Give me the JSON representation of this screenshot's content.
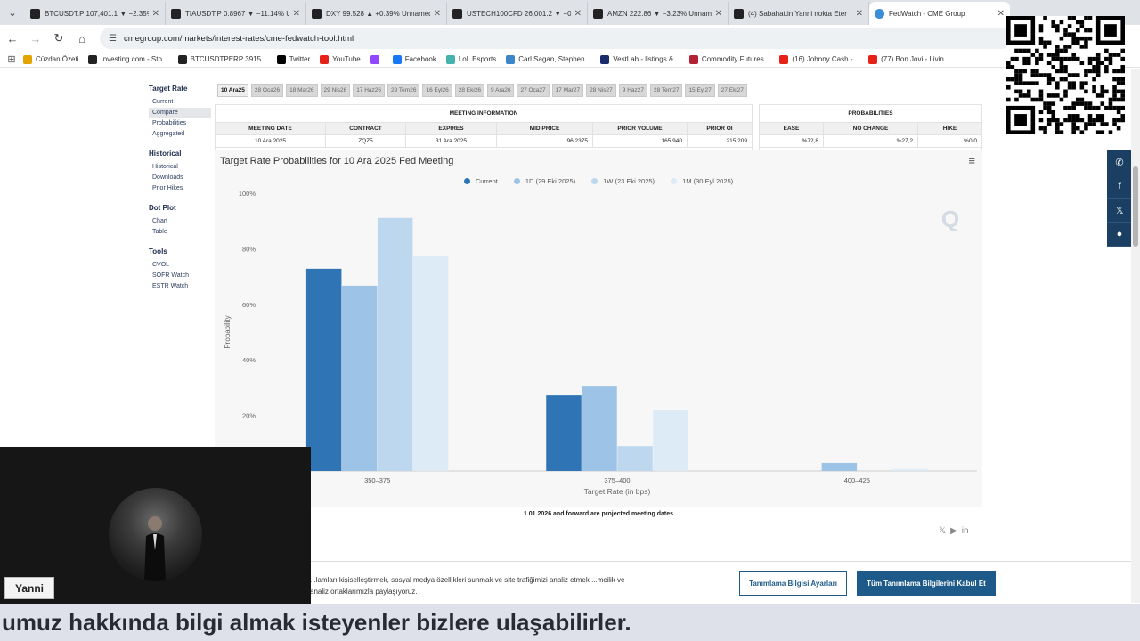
{
  "browser": {
    "tabs": [
      {
        "title": "BTCUSDT.P 107,401.1 ▼ −2.35%",
        "icon": "tradingview-icon"
      },
      {
        "title": "TIAUSDT.P 0.8967 ▼ −11.14% U",
        "icon": "tradingview-icon"
      },
      {
        "title": "DXY 99.528 ▲ +0.39% Unnamed",
        "icon": "tradingview-icon"
      },
      {
        "title": "USTECH100CFD 26,001.2 ▼ −0",
        "icon": "tradingview-icon"
      },
      {
        "title": "AMZN 222.86 ▼ −3.23% Unnam",
        "icon": "tradingview-icon"
      },
      {
        "title": "(4) Sabahattin Yanni nokta Eter",
        "icon": "x-icon"
      },
      {
        "title": "FedWatch - CME Group",
        "icon": "globe-icon"
      }
    ],
    "url": "cmegroup.com/markets/interest-rates/cme-fedwatch-tool.html",
    "bookmarks": [
      {
        "label": "Cüzdan Özeti",
        "color": "#e2a400"
      },
      {
        "label": "Investing.com - Sto...",
        "color": "#222222"
      },
      {
        "label": "BTCUSDTPERP 3915...",
        "color": "#222222"
      },
      {
        "label": "Twitter",
        "color": "#000000"
      },
      {
        "label": "YouTube",
        "color": "#e62117"
      },
      {
        "label": "",
        "color": "#9146ff"
      },
      {
        "label": "Facebook",
        "color": "#1877f2"
      },
      {
        "label": "LoL Esports",
        "color": "#46b3b0"
      },
      {
        "label": "Carl Sagan, Stephen...",
        "color": "#3a86c8"
      },
      {
        "label": "VestLab - listings &...",
        "color": "#1a2b6b"
      },
      {
        "label": "Commodity Futures...",
        "color": "#b22234"
      },
      {
        "label": "(16) Johnny Cash -...",
        "color": "#e62117"
      },
      {
        "label": "(77) Bon Jovi - Livin...",
        "color": "#e62117"
      }
    ]
  },
  "nav": {
    "sections": [
      {
        "title": "Target Rate",
        "items": [
          {
            "label": "Current",
            "selected": false
          },
          {
            "label": "Compare",
            "selected": true
          },
          {
            "label": "Probabilities",
            "selected": false
          },
          {
            "label": "Aggregated",
            "selected": false
          }
        ]
      },
      {
        "title": "Historical",
        "items": [
          {
            "label": "Historical",
            "selected": false
          },
          {
            "label": "Downloads",
            "selected": false
          },
          {
            "label": "Prior Hikes",
            "selected": false
          }
        ]
      },
      {
        "title": "Dot Plot",
        "items": [
          {
            "label": "Chart",
            "selected": false
          },
          {
            "label": "Table",
            "selected": false
          }
        ]
      },
      {
        "title": "Tools",
        "items": [
          {
            "label": "CVOL",
            "selected": false
          },
          {
            "label": "SOFR Watch",
            "selected": false
          },
          {
            "label": "ESTR Watch",
            "selected": false
          }
        ]
      }
    ]
  },
  "meeting_dates": [
    "10 Ara25",
    "28 Oca26",
    "18 Mar26",
    "29 Nis26",
    "17 Haz26",
    "29 Tem26",
    "16 Eyl26",
    "28 Eki26",
    "9 Ara26",
    "27 Oca27",
    "17 Mar27",
    "28 Nis27",
    "9 Haz27",
    "28 Tem27",
    "15 Eyl27",
    "27 Eki27"
  ],
  "meeting_info": {
    "title": "MEETING INFORMATION",
    "headers": [
      "MEETING DATE",
      "CONTRACT",
      "EXPIRES",
      "MID PRICE",
      "PRIOR VOLUME",
      "PRIOR OI"
    ],
    "values": [
      "10 Ara 2025",
      "ZQZ5",
      "31 Ara 2025",
      "96.2375",
      "165.940",
      "215.209"
    ]
  },
  "probabilities": {
    "title": "PROBABILITIES",
    "headers": [
      "EASE",
      "NO CHANGE",
      "HIKE"
    ],
    "values": [
      "%72,8",
      "%27,2",
      "%0.0"
    ]
  },
  "chart_data": {
    "type": "bar",
    "title": "Target Rate Probabilities for 10 Ara 2025 Fed Meeting",
    "xlabel": "Target Rate (in bps)",
    "ylabel": "Probability",
    "categories": [
      "350-375",
      "375-400",
      "400-425"
    ],
    "series": [
      {
        "name": "Current",
        "color": "#2f74b5",
        "values": [
          72.8,
          27.2,
          0.0
        ]
      },
      {
        "name": "1D (29 Eki 2025)",
        "color": "#9dc3e6",
        "values": [
          66.7,
          30.4,
          2.9
        ]
      },
      {
        "name": "1W (23 Eki 2025)",
        "color": "#bdd7ee",
        "values": [
          91.1,
          8.9,
          0.0
        ]
      },
      {
        "name": "1M (30 Eyl 2025)",
        "color": "#ddebf7",
        "values": [
          77.2,
          22.1,
          0.7
        ]
      }
    ],
    "y_ticks": [
      "0%",
      "20%",
      "40%",
      "60%",
      "80%",
      "100%"
    ],
    "ylim": [
      0,
      100
    ],
    "grid": false,
    "legend": "top-center"
  },
  "footnote": "1.01.2026 and forward are projected meeting dates",
  "cookie": {
    "text": "...lamları kişiselleştirmek, sosyal medya özellikleri sunmak ve site trafiğimizi analiz etmek ...mcilik ve analiz ortaklarımızla paylaşıyoruz.",
    "settings_label": "Tanımlama Bilgisi Ayarları",
    "accept_label": "Tüm Tanımlama Bilgilerini Kabul Et"
  },
  "webcam": {
    "name": "Yanni"
  },
  "caption": "umuz hakkında bilgi almak isteyenler bizlere ulaşabilirler."
}
